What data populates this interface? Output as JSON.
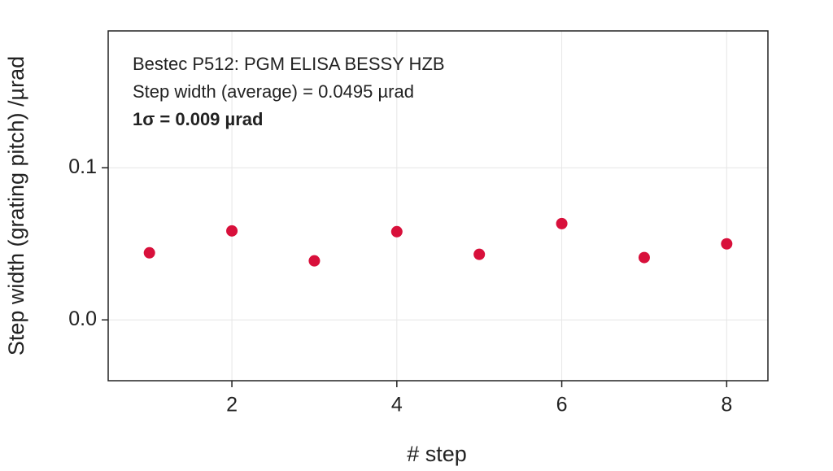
{
  "chart_data": {
    "type": "scatter",
    "x_label": "# step",
    "y_label": "Step width (grating pitch) /µrad",
    "annotations": [
      "Bestec P512: PGM ELISA BESSY HZB",
      "Step width (average) = 0.0495 µrad",
      "1σ = 0.009 µrad"
    ],
    "x": [
      1,
      2,
      3,
      4,
      5,
      6,
      7,
      8
    ],
    "series": [
      {
        "color": "#d8103b",
        "values": [
          0.0441,
          0.0585,
          0.0388,
          0.058,
          0.0431,
          0.0633,
          0.041,
          0.05
        ]
      }
    ],
    "xlim": [
      0.5,
      8.5
    ],
    "xticks": [
      2,
      4,
      6,
      8
    ],
    "ylim": [
      -0.04,
      0.19
    ],
    "yticks": [
      {
        "value": 0,
        "label": "0.0"
      },
      0.1
    ],
    "grid": true
  }
}
